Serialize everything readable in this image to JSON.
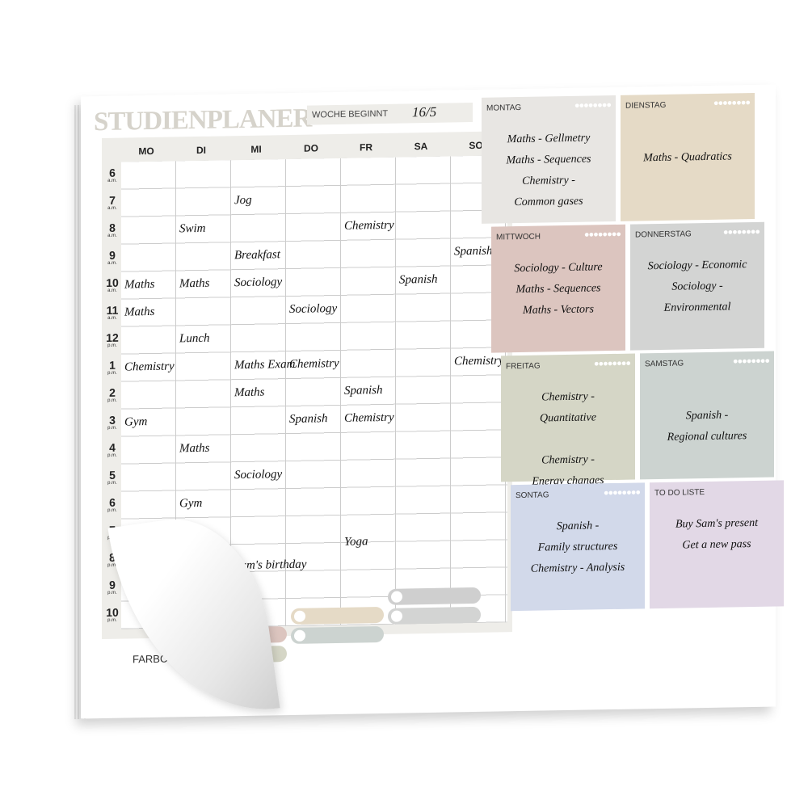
{
  "title": "STUDIENPLANER",
  "week": {
    "label": "WOCHE BEGINNT",
    "value": "16/5"
  },
  "days": [
    "MO",
    "DI",
    "MI",
    "DO",
    "FR",
    "SA",
    "SO"
  ],
  "hours": [
    [
      "6",
      "a.m."
    ],
    [
      "7",
      "a.m."
    ],
    [
      "8",
      "a.m."
    ],
    [
      "9",
      "a.m."
    ],
    [
      "10",
      "a.m."
    ],
    [
      "11",
      "a.m."
    ],
    [
      "12",
      "p.m."
    ],
    [
      "1",
      "p.m."
    ],
    [
      "2",
      "p.m."
    ],
    [
      "3",
      "p.m."
    ],
    [
      "4",
      "p.m."
    ],
    [
      "5",
      "p.m."
    ],
    [
      "6",
      "p.m."
    ],
    [
      "7",
      "p.m."
    ],
    [
      "8",
      "p.m."
    ],
    [
      "9",
      "p.m."
    ],
    [
      "10",
      "p.m."
    ]
  ],
  "entries": [
    {
      "day": "MI",
      "hour": "7",
      "text": "Jog"
    },
    {
      "day": "DI",
      "hour": "8",
      "text": "Swim"
    },
    {
      "day": "FR",
      "hour": "8",
      "text": "Chemistry"
    },
    {
      "day": "MI",
      "hour": "9",
      "text": "Breakfast"
    },
    {
      "day": "SO",
      "hour": "9",
      "text": "Spanish"
    },
    {
      "day": "MO",
      "hour": "10",
      "text": "Maths"
    },
    {
      "day": "DI",
      "hour": "10",
      "text": "Maths"
    },
    {
      "day": "MI",
      "hour": "10",
      "text": "Sociology"
    },
    {
      "day": "SA",
      "hour": "10",
      "text": "Spanish"
    },
    {
      "day": "DO",
      "hour": "11",
      "text": "Sociology"
    },
    {
      "day": "MO",
      "hour": "11",
      "text": "Maths"
    },
    {
      "day": "DI",
      "hour": "12",
      "text": "Lunch"
    },
    {
      "day": "MI",
      "hour": "1",
      "text": "Maths Exam"
    },
    {
      "day": "MO",
      "hour": "1",
      "text": "Chemistry"
    },
    {
      "day": "DO",
      "hour": "1",
      "text": "Chemistry"
    },
    {
      "day": "SO",
      "hour": "1",
      "text": "Chemistry"
    },
    {
      "day": "FR",
      "hour": "2",
      "text": "Spanish"
    },
    {
      "day": "MI",
      "hour": "2",
      "text": "Maths"
    },
    {
      "day": "MO",
      "hour": "3",
      "text": "Gym"
    },
    {
      "day": "DO",
      "hour": "3",
      "text": "Spanish"
    },
    {
      "day": "FR",
      "hour": "3",
      "text": "Chemistry"
    },
    {
      "day": "DI",
      "hour": "4",
      "text": "Maths"
    },
    {
      "day": "MI",
      "hour": "5",
      "text": "Sociology"
    },
    {
      "day": "DI",
      "hour": "6",
      "text": "Gym"
    },
    {
      "day": "FR",
      "hour": "8",
      "text": "Yoga"
    },
    {
      "day": "MI",
      "hour": "8",
      "text": "Sam's birthday"
    }
  ],
  "farbcode": {
    "label": "FARBCODE",
    "colors": [
      "#dcc5bf",
      "#e5dac6",
      "#cfcfcf",
      "#d5d6c6",
      "#ccd3d0",
      "#d3d4d3"
    ]
  },
  "panels": [
    {
      "title": "MONTAG",
      "color": "#e8e6e3",
      "drops": true,
      "lines": [
        "Maths - Gellmetry",
        "Maths - Sequences",
        "Chemistry -",
        "Common gases"
      ]
    },
    {
      "title": "DIENSTAG",
      "color": "#e5dac6",
      "drops": true,
      "lines": [
        "",
        "Maths - Quadratics"
      ]
    },
    {
      "title": "MITTWOCH",
      "color": "#dcc5bf",
      "drops": true,
      "lines": [
        "Sociology - Culture",
        "Maths - Sequences",
        "Maths - Vectors"
      ]
    },
    {
      "title": "DONNERSTAG",
      "color": "#d3d4d3",
      "drops": true,
      "lines": [
        "Sociology - Economic",
        "Sociology -",
        "Environmental"
      ]
    },
    {
      "title": "FREITAG",
      "color": "#d5d6c6",
      "drops": true,
      "lines": [
        "Chemistry -",
        "Quantitative",
        "",
        "Chemistry -",
        "Energy changes"
      ]
    },
    {
      "title": "SAMSTAG",
      "color": "#ccd3d0",
      "drops": true,
      "lines": [
        "",
        "Spanish -",
        "Regional cultures"
      ]
    },
    {
      "title": "SONTAG",
      "color": "#d2d9ea",
      "drops": true,
      "lines": [
        "Spanish -",
        "Family structures",
        "Chemistry - Analysis"
      ]
    },
    {
      "title": "TO DO LISTE",
      "color": "#e2d8e6",
      "drops": false,
      "lines": [
        "Buy Sam's present",
        "Get a new pass"
      ]
    }
  ],
  "icons": {
    "drop": "water-drop-icon"
  }
}
